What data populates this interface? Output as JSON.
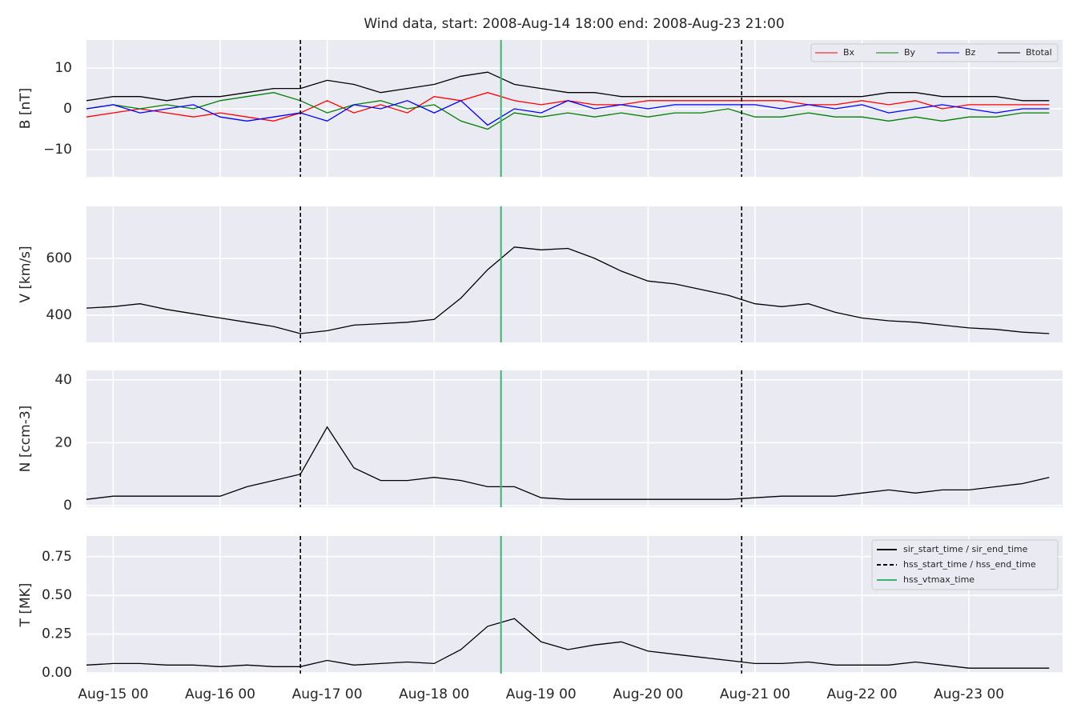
{
  "title": "Wind data, start: 2008-Aug-14 18:00  end: 2008-Aug-23 21:00",
  "x": [
    "2008-08-14 18:00",
    "2008-08-15 00:00",
    "2008-08-15 06:00",
    "2008-08-15 12:00",
    "2008-08-15 18:00",
    "2008-08-16 00:00",
    "2008-08-16 06:00",
    "2008-08-16 12:00",
    "2008-08-16 18:00",
    "2008-08-17 00:00",
    "2008-08-17 06:00",
    "2008-08-17 12:00",
    "2008-08-17 18:00",
    "2008-08-18 00:00",
    "2008-08-18 06:00",
    "2008-08-18 12:00",
    "2008-08-18 18:00",
    "2008-08-19 00:00",
    "2008-08-19 06:00",
    "2008-08-19 12:00",
    "2008-08-19 18:00",
    "2008-08-20 00:00",
    "2008-08-20 06:00",
    "2008-08-20 12:00",
    "2008-08-20 18:00",
    "2008-08-21 00:00",
    "2008-08-21 06:00",
    "2008-08-21 12:00",
    "2008-08-21 18:00",
    "2008-08-22 00:00",
    "2008-08-22 06:00",
    "2008-08-22 12:00",
    "2008-08-22 18:00",
    "2008-08-23 00:00",
    "2008-08-23 06:00",
    "2008-08-23 12:00",
    "2008-08-23 18:00"
  ],
  "xlim": [
    "2008-08-14 18:00",
    "2008-08-23 21:00"
  ],
  "xticks": [
    {
      "value": "2008-08-15 00:00",
      "label": "Aug-15 00"
    },
    {
      "value": "2008-08-16 00:00",
      "label": "Aug-16 00"
    },
    {
      "value": "2008-08-17 00:00",
      "label": "Aug-17 00"
    },
    {
      "value": "2008-08-18 00:00",
      "label": "Aug-18 00"
    },
    {
      "value": "2008-08-19 00:00",
      "label": "Aug-19 00"
    },
    {
      "value": "2008-08-20 00:00",
      "label": "Aug-20 00"
    },
    {
      "value": "2008-08-21 00:00",
      "label": "Aug-21 00"
    },
    {
      "value": "2008-08-22 00:00",
      "label": "Aug-22 00"
    },
    {
      "value": "2008-08-23 00:00",
      "label": "Aug-23 00"
    }
  ],
  "events": [
    {
      "name": "sir_start_time / sir_end_time",
      "color": "#000000",
      "dashed": false,
      "times": []
    },
    {
      "name": "hss_start_time / hss_end_time",
      "color": "#000000",
      "dashed": true,
      "times": [
        "2008-08-16 18:00",
        "2008-08-20 21:00"
      ]
    },
    {
      "name": "hss_vtmax_time",
      "color": "#3cb371",
      "dashed": false,
      "times": [
        "2008-08-18 15:00"
      ]
    }
  ],
  "chart_data": [
    {
      "type": "line",
      "ylabel": "B [nT]",
      "ylim": [
        -16.7,
        16.9
      ],
      "yticks": [
        {
          "value": -10,
          "label": "−10"
        },
        0,
        10
      ],
      "grid": true,
      "legend": "upper right",
      "series": [
        {
          "name": "Bx",
          "color": "#ff0000",
          "values": [
            -2,
            -1,
            0,
            -1,
            -2,
            -1,
            -2,
            -3,
            -1,
            2,
            -1,
            1,
            -1,
            3,
            2,
            4,
            2,
            1,
            2,
            1,
            1,
            2,
            2,
            2,
            2,
            2,
            2,
            1,
            1,
            2,
            1,
            2,
            0,
            1,
            1,
            1,
            1
          ]
        },
        {
          "name": "By",
          "color": "#008000",
          "values": [
            0,
            1,
            0,
            1,
            0,
            2,
            3,
            4,
            2,
            -1,
            1,
            2,
            0,
            1,
            -3,
            -5,
            -1,
            -2,
            -1,
            -2,
            -1,
            -2,
            -1,
            -1,
            0,
            -2,
            -2,
            -1,
            -2,
            -2,
            -3,
            -2,
            -3,
            -2,
            -2,
            -1,
            -1
          ]
        },
        {
          "name": "Bz",
          "color": "#0000ff",
          "values": [
            0,
            1,
            -1,
            0,
            1,
            -2,
            -3,
            -2,
            -1,
            -3,
            1,
            0,
            2,
            -1,
            2,
            -4,
            0,
            -1,
            2,
            0,
            1,
            0,
            1,
            1,
            1,
            1,
            0,
            1,
            0,
            1,
            -1,
            0,
            1,
            0,
            -1,
            0,
            0
          ]
        },
        {
          "name": "Btotal",
          "color": "#000000",
          "values": [
            2,
            3,
            3,
            2,
            3,
            3,
            4,
            5,
            5,
            7,
            6,
            4,
            5,
            6,
            8,
            9,
            6,
            5,
            4,
            4,
            3,
            3,
            3,
            3,
            3,
            3,
            3,
            3,
            3,
            3,
            4,
            4,
            3,
            3,
            3,
            2,
            2
          ]
        }
      ]
    },
    {
      "type": "line",
      "ylabel": "V [km/s]",
      "ylim": [
        304,
        783
      ],
      "yticks": [
        400,
        600
      ],
      "grid": true,
      "series": [
        {
          "name": "V",
          "color": "#000000",
          "values": [
            425,
            430,
            440,
            420,
            405,
            390,
            375,
            360,
            335,
            345,
            365,
            370,
            375,
            385,
            460,
            560,
            640,
            630,
            635,
            600,
            555,
            520,
            510,
            490,
            470,
            440,
            430,
            440,
            410,
            390,
            380,
            375,
            365,
            355,
            350,
            340,
            335
          ]
        }
      ]
    },
    {
      "type": "line",
      "ylabel": "N [ccm-3]",
      "ylim": [
        -0.5,
        43
      ],
      "yticks": [
        0,
        20,
        40
      ],
      "grid": true,
      "series": [
        {
          "name": "N",
          "color": "#000000",
          "values": [
            2,
            3,
            3,
            3,
            3,
            3,
            6,
            8,
            10,
            25,
            12,
            8,
            8,
            9,
            8,
            6,
            6,
            2.5,
            2,
            2,
            2,
            2,
            2,
            2,
            2,
            2.5,
            3,
            3,
            3,
            4,
            5,
            4,
            5,
            5,
            6,
            7,
            9
          ]
        }
      ]
    },
    {
      "type": "line",
      "ylabel": "T [MK]",
      "ylim": [
        -0.005,
        0.883
      ],
      "yticks": [
        {
          "value": 0,
          "label": "0.00"
        },
        0.25,
        {
          "value": 0.5,
          "label": "0.50"
        },
        0.75
      ],
      "grid": true,
      "legend": "upper right",
      "series": [
        {
          "name": "T",
          "color": "#000000",
          "values": [
            0.05,
            0.06,
            0.06,
            0.05,
            0.05,
            0.04,
            0.05,
            0.04,
            0.04,
            0.08,
            0.05,
            0.06,
            0.07,
            0.06,
            0.15,
            0.3,
            0.35,
            0.2,
            0.15,
            0.18,
            0.2,
            0.14,
            0.12,
            0.1,
            0.08,
            0.06,
            0.06,
            0.07,
            0.05,
            0.05,
            0.05,
            0.07,
            0.05,
            0.03,
            0.03,
            0.03,
            0.03
          ]
        }
      ]
    }
  ]
}
